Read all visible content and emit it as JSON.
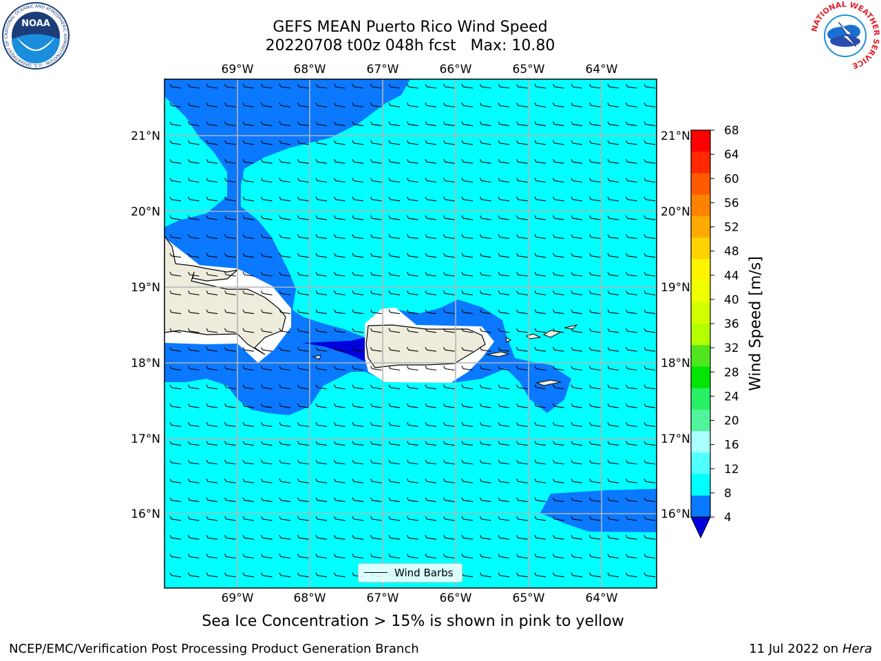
{
  "header": {
    "title_line1": "GEFS MEAN Puerto Rico Wind Speed",
    "title_line2": "20220708 t00z 048h fcst   Max: 10.80"
  },
  "map": {
    "lon_labels": [
      "69°W",
      "68°W",
      "67°W",
      "66°W",
      "65°W",
      "64°W"
    ],
    "lat_labels": [
      "21°N",
      "20°N",
      "19°N",
      "18°N",
      "17°N",
      "16°N"
    ],
    "legend_label": "Wind Barbs",
    "shading_colors": {
      "below_4": "#0000dc",
      "4_to_8": "#0a78ff",
      "8_to_12": "#00ffff",
      "land": "#eeecdc",
      "no_data": "#ffffff"
    }
  },
  "colorbar": {
    "label": "Wind Speed [m/s]",
    "ticks": [
      "68",
      "64",
      "60",
      "56",
      "52",
      "48",
      "44",
      "40",
      "36",
      "32",
      "28",
      "24",
      "20",
      "16",
      "12",
      "8",
      "4"
    ],
    "colors_top_to_bottom": [
      "#ff0000",
      "#ff2800",
      "#ff5a00",
      "#ff8200",
      "#ffaa00",
      "#ffd200",
      "#fff500",
      "#eeff00",
      "#d2ff00",
      "#b4ff00",
      "#50e61e",
      "#00e600",
      "#28f064",
      "#50f59b",
      "#aaffff",
      "#50ffff",
      "#00ffff",
      "#0a78ff"
    ],
    "extend_color": "#0000dc"
  },
  "logos": {
    "noaa_text": "NOAA",
    "noaa_ring_text": "NATIONAL OCEANIC AND ATMOSPHERIC ADMINISTRATION · U.S. DEPARTMENT OF COMMERCE",
    "nws_ring_text": "NATIONAL WEATHER SERVICE"
  },
  "caption": "Sea Ice Concentration > 15% is shown in pink to yellow",
  "footer": {
    "left": "NCEP/EMC/Verification Post Processing Product Generation Branch",
    "right_prefix": "11 Jul 2022 on ",
    "right_host": "Hera"
  }
}
